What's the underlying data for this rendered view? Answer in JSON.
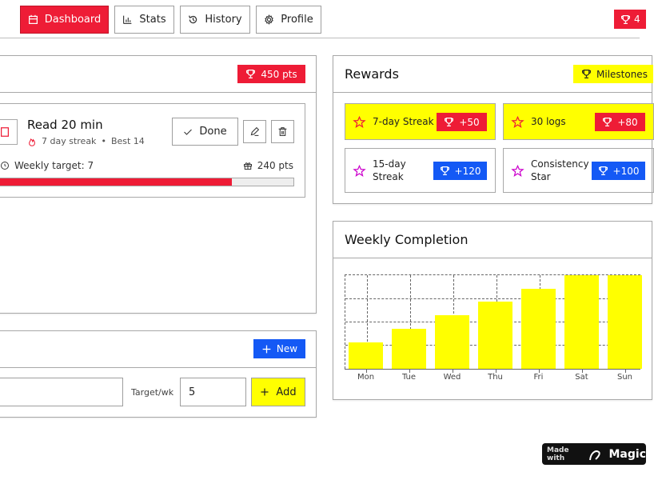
{
  "nav": {
    "tabs": [
      {
        "label": "Dashboard",
        "icon": "calendar-icon",
        "active": true
      },
      {
        "label": "Stats",
        "icon": "bar-chart-icon",
        "active": false
      },
      {
        "label": "History",
        "icon": "history-icon",
        "active": false
      },
      {
        "label": "Profile",
        "icon": "gear-icon",
        "active": false
      }
    ],
    "right_badge": "4"
  },
  "habits_panel": {
    "points_badge": "450 pts",
    "habit": {
      "name": "Read 20 min",
      "streak": "7 day streak",
      "separator": "•",
      "best": "Best 14",
      "done_label": "Done",
      "weekly_target": "Weekly target: 7",
      "points": "240 pts",
      "progress_percent": 79
    }
  },
  "add_panel": {
    "new_label": "New",
    "name_value": "",
    "target_label": "Target/wk",
    "target_value": "5",
    "add_label": "Add"
  },
  "rewards": {
    "title": "Rewards",
    "badge": "Milestones",
    "items": [
      {
        "label": "7-day Streak",
        "points": "+50",
        "style": "yellow"
      },
      {
        "label": "30 logs",
        "points": "+80",
        "style": "yellow"
      },
      {
        "label": "15-day Streak",
        "points": "+120",
        "style": "white"
      },
      {
        "label": "Consistency Star",
        "points": "+100",
        "style": "white"
      }
    ]
  },
  "weekly": {
    "title": "Weekly Completion"
  },
  "chart_data": {
    "type": "bar",
    "title": "Weekly Completion",
    "categories": [
      "Mon",
      "Tue",
      "Wed",
      "Thu",
      "Fri",
      "Sat",
      "Sun"
    ],
    "values": [
      2,
      3,
      4,
      5,
      6,
      7,
      7
    ],
    "ylim": [
      0,
      7
    ],
    "xlabel": "",
    "ylabel": "",
    "grid": true,
    "bar_color": "#ffff00"
  },
  "footer": {
    "made_with": "Made with",
    "brand": "Magic"
  },
  "colors": {
    "accent_red": "#ee1c36",
    "accent_blue": "#1459f5",
    "accent_yellow": "#ffff00"
  }
}
